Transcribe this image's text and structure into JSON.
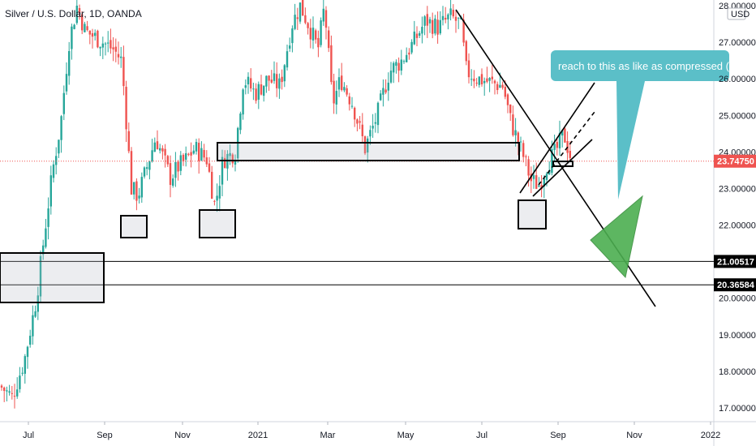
{
  "chart_data": {
    "type": "candlestick",
    "title": "Silver / U.S. Dollar, 1D, OANDA",
    "currency": "USD",
    "y_axis": {
      "ticks": [
        "28.00000",
        "27.00000",
        "26.00000",
        "25.00000",
        "24.00000",
        "23.00000",
        "22.00000",
        "21.00000",
        "20.00000",
        "19.00000",
        "18.00000",
        "17.00000"
      ],
      "tick_values": [
        28,
        27,
        26,
        25,
        24,
        23,
        22,
        21,
        20,
        19,
        18,
        17
      ],
      "range": [
        16.7,
        28.1
      ]
    },
    "x_axis": {
      "ticks": [
        "Jul",
        "Sep",
        "Nov",
        "2021",
        "Mar",
        "May",
        "Jul",
        "Sep",
        "Nov",
        "2022"
      ]
    },
    "price_tags": [
      {
        "value": 23.7475,
        "label": "23.74750",
        "color": "#ef5350"
      },
      {
        "value": 21.00517,
        "label": "21.00517",
        "color": "#000000"
      },
      {
        "value": 20.36584,
        "label": "20.36584",
        "color": "#000000"
      }
    ],
    "horizontal_lines": [
      21.00517,
      20.36584
    ],
    "annotations": [
      {
        "type": "callout",
        "text": "reach to this as like as compressed (",
        "color": "#5bbfc8"
      }
    ],
    "series": [
      {
        "name": "close",
        "up_color": "#26a69a",
        "down_color": "#ef5350",
        "keypoints": [
          [
            0,
            17.6
          ],
          [
            15,
            17.3
          ],
          [
            30,
            18.3
          ],
          [
            45,
            20.0
          ],
          [
            55,
            21.8
          ],
          [
            65,
            23.5
          ],
          [
            75,
            24.8
          ],
          [
            85,
            27.0
          ],
          [
            95,
            28.0
          ],
          [
            105,
            27.3
          ],
          [
            120,
            27.1
          ],
          [
            140,
            26.8
          ],
          [
            150,
            26.5
          ],
          [
            162,
            23.0
          ],
          [
            170,
            22.8
          ],
          [
            180,
            23.5
          ],
          [
            192,
            24.4
          ],
          [
            210,
            23.3
          ],
          [
            220,
            23.6
          ],
          [
            230,
            23.8
          ],
          [
            240,
            24.1
          ],
          [
            255,
            23.8
          ],
          [
            265,
            22.5
          ],
          [
            275,
            23.8
          ],
          [
            290,
            24.0
          ],
          [
            300,
            26.0
          ],
          [
            315,
            25.6
          ],
          [
            330,
            26.0
          ],
          [
            345,
            25.8
          ],
          [
            360,
            27.5
          ],
          [
            370,
            28.0
          ],
          [
            380,
            27.5
          ],
          [
            392,
            26.8
          ],
          [
            400,
            28.0
          ],
          [
            410,
            25.3
          ],
          [
            420,
            26.0
          ],
          [
            435,
            25.3
          ],
          [
            450,
            24.1
          ],
          [
            465,
            25.0
          ],
          [
            480,
            26.2
          ],
          [
            495,
            26.5
          ],
          [
            510,
            27.0
          ],
          [
            525,
            27.6
          ],
          [
            540,
            27.4
          ],
          [
            555,
            27.7
          ],
          [
            568,
            27.5
          ],
          [
            575,
            26.2
          ],
          [
            590,
            26.0
          ],
          [
            605,
            25.9
          ],
          [
            620,
            25.8
          ],
          [
            630,
            24.8
          ],
          [
            645,
            23.9
          ],
          [
            655,
            23.2
          ],
          [
            665,
            23.1
          ],
          [
            675,
            23.7
          ],
          [
            685,
            24.0
          ],
          [
            695,
            24.5
          ],
          [
            705,
            23.75
          ]
        ]
      }
    ]
  }
}
